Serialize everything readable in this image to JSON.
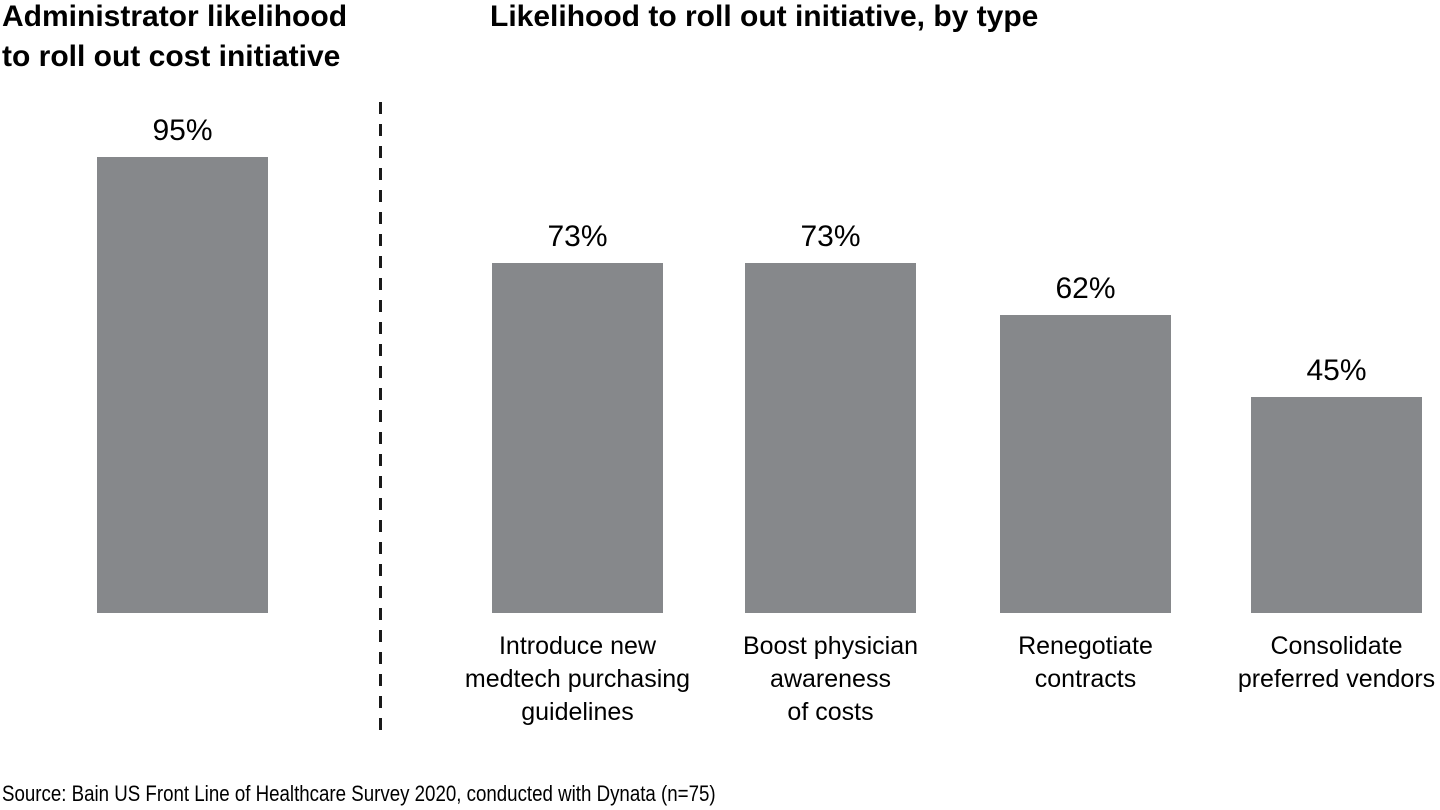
{
  "titles": {
    "left": "Administrator likelihood\nto roll out cost initiative",
    "right": "Likelihood to roll out initiative, by type"
  },
  "source": "Source: Bain US Front Line of Healthcare Survey 2020, conducted with Dynata (n=75)",
  "colors": {
    "bar": "#86888B",
    "text": "#000000",
    "divider": "#1A1A1A"
  },
  "chart_data": [
    {
      "type": "bar",
      "title": "Administrator likelihood to roll out cost initiative",
      "categories": [
        ""
      ],
      "values": [
        95
      ],
      "value_labels": [
        "95%"
      ],
      "unit": "%",
      "xlabel": "",
      "ylabel": "",
      "ylim": [
        0,
        100
      ],
      "grid": false,
      "legend": "none",
      "bar_color": "#86888B"
    },
    {
      "type": "bar",
      "title": "Likelihood to roll out initiative, by type",
      "categories": [
        "Introduce new\nmedtech purchasing\nguidelines",
        "Boost physician\nawareness\nof costs",
        "Renegotiate\ncontracts",
        "Consolidate\npreferred vendors"
      ],
      "values": [
        73,
        73,
        62,
        45
      ],
      "value_labels": [
        "73%",
        "73%",
        "62%",
        "45%"
      ],
      "unit": "%",
      "xlabel": "",
      "ylabel": "",
      "ylim": [
        0,
        100
      ],
      "grid": false,
      "legend": "none",
      "bar_color": "#86888B"
    }
  ]
}
